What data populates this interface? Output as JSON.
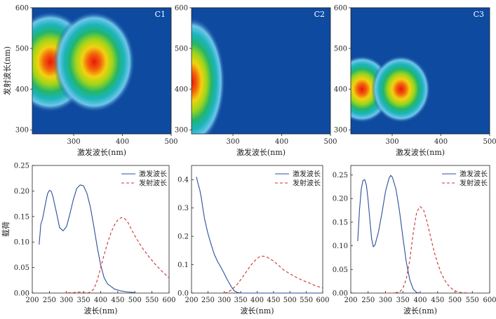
{
  "chart_data": [
    {
      "type": "heatmap",
      "id": "C1",
      "panel_label": "C1",
      "xlabel": "激发波长(nm)",
      "ylabel": "发射波长(nm)",
      "xlim": [
        215,
        500
      ],
      "ylim": [
        290,
        600
      ],
      "xticks": [
        300,
        400,
        500
      ],
      "yticks": [
        300,
        400,
        500,
        600
      ],
      "peaks": [
        {
          "ex": 252,
          "em": 467,
          "intensity": 1.0
        },
        {
          "ex": 342,
          "em": 467,
          "intensity": 1.0
        }
      ]
    },
    {
      "type": "heatmap",
      "id": "C2",
      "panel_label": "C2",
      "xlabel": "激发波长(nm)",
      "ylabel": "",
      "xlim": [
        215,
        500
      ],
      "ylim": [
        290,
        600
      ],
      "xticks": [
        300,
        400,
        500
      ],
      "yticks": [
        300,
        400,
        500,
        600
      ],
      "peaks": [
        {
          "ex": 215,
          "em": 418,
          "intensity": 1.0
        }
      ]
    },
    {
      "type": "heatmap",
      "id": "C3",
      "panel_label": "C3",
      "xlabel": "激发波长(nm)",
      "ylabel": "",
      "xlim": [
        215,
        500
      ],
      "ylim": [
        290,
        600
      ],
      "xticks": [
        300,
        400,
        500
      ],
      "yticks": [
        300,
        400,
        500,
        600
      ],
      "peaks": [
        {
          "ex": 238,
          "em": 400,
          "intensity": 1.0
        },
        {
          "ex": 318,
          "em": 400,
          "intensity": 1.0
        }
      ]
    },
    {
      "type": "line",
      "id": "L1",
      "xlabel": "波长(nm)",
      "ylabel": "载荷",
      "xlim": [
        200,
        600
      ],
      "ylim": [
        0,
        0.25
      ],
      "xticks": [
        200,
        250,
        300,
        350,
        400,
        450,
        500,
        550,
        600
      ],
      "yticks": [
        0,
        0.05,
        0.1,
        0.15,
        0.2,
        0.25
      ],
      "ytick_labels": [
        "0.00",
        "0.05",
        "0.10",
        "0.15",
        "0.20",
        "0.25"
      ],
      "series": [
        {
          "name": "激发波长",
          "style": "solid",
          "color": "#2c4f9c",
          "x": [
            220,
            225,
            230,
            240,
            245,
            250,
            255,
            260,
            270,
            280,
            290,
            300,
            310,
            320,
            330,
            340,
            350,
            360,
            370,
            380,
            390,
            400,
            410,
            420,
            440,
            460,
            480,
            500
          ],
          "y": [
            0.095,
            0.135,
            0.145,
            0.18,
            0.195,
            0.201,
            0.2,
            0.19,
            0.16,
            0.128,
            0.122,
            0.13,
            0.155,
            0.183,
            0.205,
            0.212,
            0.21,
            0.195,
            0.168,
            0.13,
            0.09,
            0.055,
            0.03,
            0.018,
            0.008,
            0.004,
            0.002,
            0.001
          ]
        },
        {
          "name": "发射波长",
          "style": "dashed",
          "color": "#cc3333",
          "x": [
            290,
            320,
            340,
            360,
            370,
            380,
            390,
            400,
            410,
            420,
            430,
            440,
            450,
            460,
            470,
            480,
            490,
            500,
            520,
            540,
            560,
            580,
            600
          ],
          "y": [
            0,
            0.001,
            0.002,
            0.0,
            0.002,
            0.008,
            0.025,
            0.05,
            0.075,
            0.098,
            0.118,
            0.133,
            0.143,
            0.148,
            0.146,
            0.138,
            0.125,
            0.112,
            0.09,
            0.072,
            0.056,
            0.042,
            0.03
          ]
        }
      ]
    },
    {
      "type": "line",
      "id": "L2",
      "xlabel": "波长(nm)",
      "ylabel": "",
      "xlim": [
        200,
        600
      ],
      "ylim": [
        0,
        0.45
      ],
      "xticks": [
        200,
        250,
        300,
        350,
        400,
        450,
        500,
        550,
        600
      ],
      "yticks": [
        0,
        0.1,
        0.2,
        0.3,
        0.4
      ],
      "ytick_labels": [
        "0.0",
        "0.1",
        "0.2",
        "0.3",
        "0.4"
      ],
      "series": [
        {
          "name": "激发波长",
          "style": "solid",
          "color": "#2c4f9c",
          "x": [
            215,
            220,
            225,
            230,
            235,
            240,
            250,
            260,
            270,
            280,
            290,
            300,
            310,
            320,
            330,
            340,
            350,
            400,
            500,
            600
          ],
          "y": [
            0.41,
            0.385,
            0.365,
            0.335,
            0.295,
            0.26,
            0.21,
            0.17,
            0.135,
            0.11,
            0.09,
            0.068,
            0.045,
            0.025,
            0.008,
            0.002,
            0.0,
            0.0,
            0.0,
            0.0
          ]
        },
        {
          "name": "发射波长",
          "style": "dashed",
          "color": "#cc3333",
          "x": [
            300,
            310,
            320,
            330,
            340,
            350,
            360,
            370,
            380,
            390,
            400,
            410,
            420,
            430,
            440,
            450,
            460,
            470,
            480,
            500,
            520,
            540,
            560,
            580,
            600
          ],
          "y": [
            0,
            0.003,
            0.01,
            0.02,
            0.032,
            0.047,
            0.063,
            0.08,
            0.097,
            0.11,
            0.122,
            0.13,
            0.13,
            0.127,
            0.12,
            0.113,
            0.103,
            0.093,
            0.082,
            0.068,
            0.055,
            0.044,
            0.035,
            0.025,
            0.018
          ]
        }
      ]
    },
    {
      "type": "line",
      "id": "L3",
      "xlabel": "波长(nm)",
      "ylabel": "",
      "xlim": [
        200,
        600
      ],
      "ylim": [
        0,
        0.27
      ],
      "xticks": [
        200,
        250,
        300,
        350,
        400,
        450,
        500,
        550,
        600
      ],
      "yticks": [
        0,
        0.05,
        0.1,
        0.15,
        0.2,
        0.25
      ],
      "ytick_labels": [
        "0.00",
        "0.05",
        "0.10",
        "0.15",
        "0.20",
        "0.25"
      ],
      "series": [
        {
          "name": "激发波长",
          "style": "solid",
          "color": "#2c4f9c",
          "x": [
            220,
            225,
            230,
            235,
            240,
            245,
            250,
            255,
            260,
            265,
            270,
            280,
            290,
            300,
            310,
            315,
            320,
            330,
            340,
            350,
            360,
            370,
            380,
            390,
            400
          ],
          "y": [
            0.11,
            0.175,
            0.22,
            0.238,
            0.24,
            0.228,
            0.195,
            0.155,
            0.115,
            0.098,
            0.102,
            0.13,
            0.17,
            0.215,
            0.243,
            0.249,
            0.245,
            0.22,
            0.175,
            0.118,
            0.065,
            0.028,
            0.008,
            0.001,
            0.0
          ]
        },
        {
          "name": "发射波长",
          "style": "dashed",
          "color": "#cc3333",
          "x": [
            300,
            320,
            340,
            350,
            360,
            370,
            380,
            390,
            400,
            410,
            420,
            430,
            440,
            450,
            460,
            470,
            480,
            490,
            500,
            510,
            520,
            540
          ],
          "y": [
            0,
            0.0,
            0.002,
            0.01,
            0.03,
            0.07,
            0.128,
            0.172,
            0.183,
            0.175,
            0.15,
            0.118,
            0.088,
            0.063,
            0.043,
            0.028,
            0.017,
            0.01,
            0.005,
            0.002,
            0.001,
            0.0
          ]
        }
      ]
    }
  ]
}
